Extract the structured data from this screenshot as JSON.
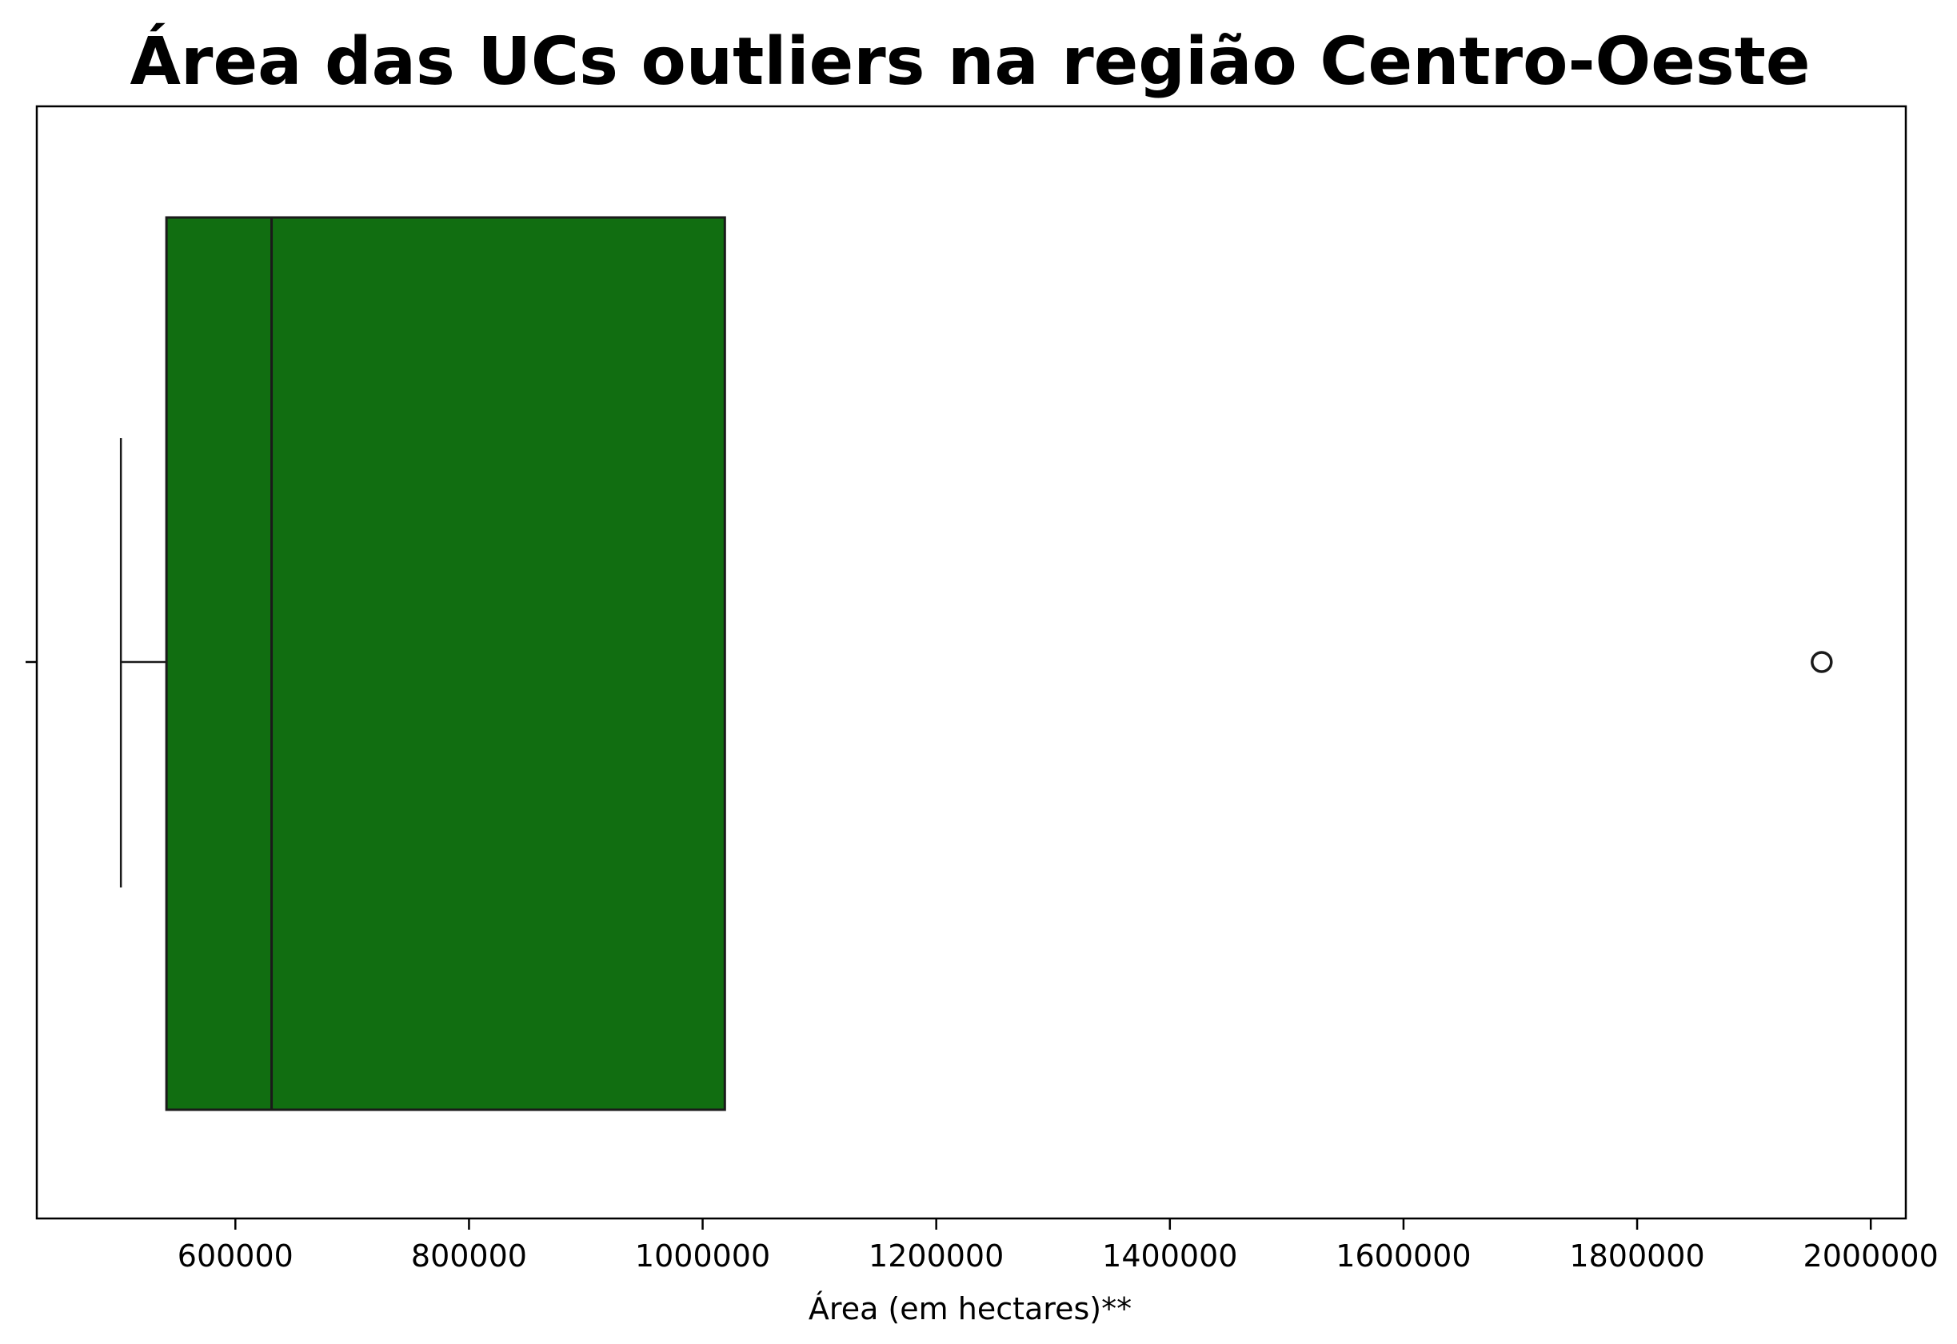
{
  "chart_data": {
    "type": "boxplot",
    "orientation": "horizontal",
    "title": "Área das UCs outliers na região Centro-Oeste",
    "xlabel": "Área (em hectares)**",
    "ylabel": "",
    "xlim": [
      430000,
      2030000
    ],
    "xticks": [
      600000,
      800000,
      1000000,
      1200000,
      1400000,
      1600000,
      1800000,
      2000000
    ],
    "xtick_labels": [
      "600000",
      "800000",
      "1000000",
      "1200000",
      "1400000",
      "1600000",
      "1800000",
      "2000000"
    ],
    "grid": false,
    "colors": {
      "box_fill": "#116e11",
      "lines": "#1a1a1a",
      "axes": "#000000"
    },
    "box": {
      "whisker_low": 502000,
      "q1": 541000,
      "median": 631000,
      "q3": 1019000,
      "whisker_high": 1019000
    },
    "outliers": [
      1958000
    ]
  }
}
